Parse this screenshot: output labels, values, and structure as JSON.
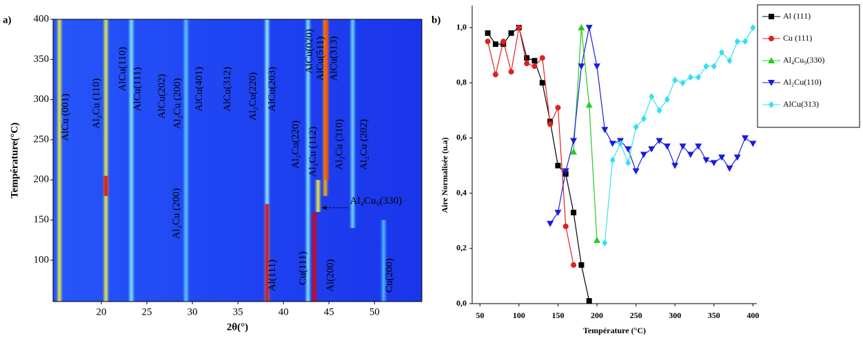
{
  "chart_data": [
    {
      "type": "heatmap",
      "panel_label": "a)",
      "xlabel": "2θ(°)",
      "ylabel": "Température(°C)",
      "xlim": [
        14.7,
        55.2
      ],
      "ylim": [
        48.5,
        400
      ],
      "xticks": [
        20,
        25,
        30,
        35,
        40,
        45,
        50
      ],
      "yticks": [
        100,
        150,
        200,
        250,
        300,
        350,
        400
      ],
      "background_color": "#1f3df0",
      "peaks": [
        {
          "x": 15.4,
          "range": [
            48.5,
            400
          ],
          "color": "#e6ec48"
        },
        {
          "x": 20.5,
          "range": [
            48.5,
            400
          ],
          "color": "#e6ec48"
        },
        {
          "x": 23.3,
          "range": [
            48.5,
            400
          ],
          "color": "#7fe8ff"
        },
        {
          "x": 29.3,
          "range": [
            48.5,
            400
          ],
          "color": "#5fc8ff"
        },
        {
          "x": 38.2,
          "range": [
            48.5,
            400
          ],
          "color": "#8ff0ff"
        },
        {
          "x": 42.7,
          "range": [
            48.5,
            400
          ],
          "color": "#7fe8ff"
        },
        {
          "x": 44.6,
          "range": [
            180,
            400
          ],
          "color": "#ffb000"
        },
        {
          "x": 47.6,
          "range": [
            140,
            400
          ],
          "color": "#6fd8ff"
        },
        {
          "x": 51.0,
          "range": [
            48.5,
            150
          ],
          "color": "#4fb8ff"
        },
        {
          "x": 38.2,
          "range": [
            48.5,
            170
          ],
          "color": "#d80000"
        },
        {
          "x": 43.4,
          "range": [
            48.5,
            160
          ],
          "color": "#e00000"
        },
        {
          "x": 44.7,
          "range": [
            200,
            400
          ],
          "color": "#ff5000"
        },
        {
          "x": 20.5,
          "range": [
            180,
            205
          ],
          "color": "#e00000"
        },
        {
          "x": 43.8,
          "range": [
            160,
            200
          ],
          "color": "#f0f040"
        }
      ],
      "annotations": [
        {
          "text": "AlCu (001)",
          "x": 16.1,
          "y": 278
        },
        {
          "text": "Al₂Cu (110)",
          "x": 19.5,
          "y": 295
        },
        {
          "text": "AlCu(110)",
          "x": 22.4,
          "y": 338
        },
        {
          "text": "AlCu(111)",
          "x": 24.0,
          "y": 313
        },
        {
          "text": "AlCu(202)",
          "x": 26.7,
          "y": 304
        },
        {
          "text": "Al₂Cu (200)",
          "x": 28.4,
          "y": 295
        },
        {
          "text": "AlCu(401)",
          "x": 30.8,
          "y": 313
        },
        {
          "text": "AlCu(312)",
          "x": 33.9,
          "y": 313
        },
        {
          "text": "Al₂Cu(220)",
          "x": 36.7,
          "y": 304
        },
        {
          "text": "AlCu(203)",
          "x": 38.8,
          "y": 313
        },
        {
          "text": "AlCu(020)",
          "x": 42.9,
          "y": 360
        },
        {
          "text": "AlCu(511)",
          "x": 44.1,
          "y": 351
        },
        {
          "text": "AlCu(313)",
          "x": 45.6,
          "y": 351
        },
        {
          "text": "Al₂Cu(220)",
          "x": 41.4,
          "y": 244
        },
        {
          "text": "Al₂Cu (112)",
          "x": 43.3,
          "y": 235
        },
        {
          "text": "Al₂Cu (310)",
          "x": 46.2,
          "y": 244
        },
        {
          "text": "Al₂Cu (202)",
          "x": 48.9,
          "y": 244
        },
        {
          "text": "Al₂Cu (200)",
          "x": 28.3,
          "y": 158
        },
        {
          "text": "Al(111)",
          "x": 38.8,
          "y": 81
        },
        {
          "text": "Cu(111)",
          "x": 42.2,
          "y": 90
        },
        {
          "text": "Al(200)",
          "x": 45.2,
          "y": 81
        },
        {
          "text": "Cu(200)",
          "x": 51.7,
          "y": 81
        },
        {
          "text": "Al₄Cu₉(330)",
          "x": 47.3,
          "y": 173,
          "arrow_to": 44.2
        }
      ]
    },
    {
      "type": "line",
      "panel_label": "b)",
      "xlabel": "Température (°C)",
      "ylabel": "Aire Normalisée (u.a)",
      "xlim": [
        40,
        405
      ],
      "ylim": [
        0,
        1.08
      ],
      "xticks": [
        50,
        100,
        150,
        200,
        250,
        300,
        350,
        400
      ],
      "yticks": [
        {
          "value": 0,
          "label": "0,0"
        },
        {
          "value": 0.2,
          "label": "0,2"
        },
        {
          "value": 0.4,
          "label": "0,4"
        },
        {
          "value": 0.6,
          "label": "0,6"
        },
        {
          "value": 0.8,
          "label": "0,8"
        },
        {
          "value": 1.0,
          "label": "1,0"
        }
      ],
      "legend": "outside-right",
      "series": [
        {
          "name": "Al (111)",
          "color": "#000000",
          "marker": "square",
          "x": [
            60,
            70,
            80,
            90,
            100,
            110,
            120,
            130,
            140,
            150,
            160,
            170,
            180,
            190
          ],
          "values": [
            0.98,
            0.94,
            0.94,
            0.98,
            1.0,
            0.89,
            0.88,
            0.8,
            0.66,
            0.5,
            0.47,
            0.33,
            0.14,
            0.01
          ]
        },
        {
          "name": "Cu (111)",
          "color": "#e02020",
          "marker": "circle",
          "x": [
            60,
            70,
            80,
            90,
            100,
            110,
            120,
            130,
            140,
            150,
            160,
            170
          ],
          "values": [
            0.95,
            0.83,
            0.95,
            0.84,
            1.0,
            0.87,
            0.86,
            0.89,
            0.65,
            0.71,
            0.28,
            0.14
          ]
        },
        {
          "name": "Al₄Cu₉(330)",
          "color": "#22cc22",
          "marker": "triangle-up",
          "x": [
            170,
            180,
            190,
            200
          ],
          "values": [
            0.55,
            1.0,
            0.72,
            0.23
          ]
        },
        {
          "name": "Al₂Cu(110)",
          "color": "#1a1ae0",
          "marker": "triangle-down",
          "x": [
            140,
            150,
            160,
            170,
            180,
            190,
            200,
            210,
            220,
            230,
            240,
            250,
            260,
            270,
            280,
            290,
            300,
            310,
            320,
            330,
            340,
            350,
            360,
            370,
            380,
            390,
            400
          ],
          "values": [
            0.29,
            0.33,
            0.48,
            0.59,
            0.86,
            1.0,
            0.86,
            0.63,
            0.58,
            0.59,
            0.56,
            0.48,
            0.54,
            0.56,
            0.59,
            0.57,
            0.5,
            0.57,
            0.54,
            0.57,
            0.52,
            0.51,
            0.53,
            0.49,
            0.53,
            0.6,
            0.58
          ]
        },
        {
          "name": "AlCu(313)",
          "color": "#33e0f0",
          "marker": "diamond",
          "x": [
            210,
            220,
            230,
            240,
            250,
            260,
            270,
            280,
            290,
            300,
            310,
            320,
            330,
            340,
            350,
            360,
            370,
            380,
            390,
            400
          ],
          "values": [
            0.22,
            0.52,
            0.58,
            0.51,
            0.64,
            0.67,
            0.75,
            0.7,
            0.74,
            0.81,
            0.8,
            0.82,
            0.82,
            0.86,
            0.86,
            0.91,
            0.88,
            0.95,
            0.95,
            1.0
          ]
        }
      ]
    }
  ]
}
